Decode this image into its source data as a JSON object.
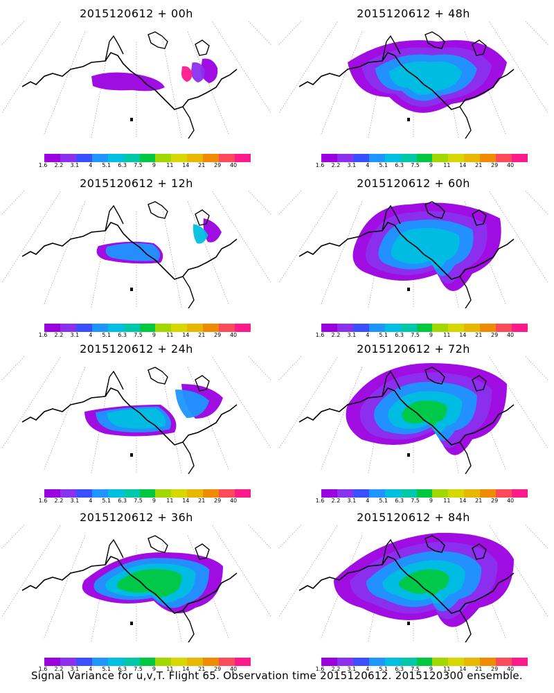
{
  "colorbar": {
    "colors": [
      "#9b00e0",
      "#8a30ee",
      "#3a4fff",
      "#1e96ff",
      "#00bfe0",
      "#00c8a8",
      "#00c840",
      "#a0d800",
      "#d8d800",
      "#e8b800",
      "#f08a00",
      "#ff4a5a",
      "#ff1a8c"
    ],
    "labels": [
      "1.6",
      "2.2",
      "3.1",
      "4",
      "5.1",
      "6.3",
      "7.5",
      "9",
      "11",
      "14",
      "21",
      "29",
      "40"
    ]
  },
  "panels": [
    {
      "title": "2015120612 + 00h"
    },
    {
      "title": "2015120612 + 48h"
    },
    {
      "title": "2015120612 + 12h"
    },
    {
      "title": "2015120612 + 60h"
    },
    {
      "title": "2015120612 + 24h"
    },
    {
      "title": "2015120612 + 72h"
    },
    {
      "title": "2015120612 + 36h"
    },
    {
      "title": "2015120612 + 84h"
    }
  ],
  "footer": "Signal Variance for u,v,T. Flight 65. Observation time 2015120612. 2015120300 ensemble."
}
